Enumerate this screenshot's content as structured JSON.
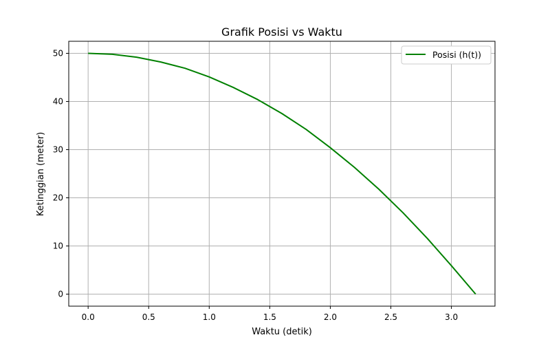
{
  "chart_data": {
    "type": "line",
    "title": "Grafik Posisi vs Waktu",
    "xlabel": "Waktu (detik)",
    "ylabel": "Ketinggian (meter)",
    "xlim": [
      -0.16,
      3.36
    ],
    "ylim": [
      -2.5,
      52.5
    ],
    "xticks": [
      0.0,
      0.5,
      1.0,
      1.5,
      2.0,
      2.5,
      3.0
    ],
    "xtick_labels": [
      "0.0",
      "0.5",
      "1.0",
      "1.5",
      "2.0",
      "2.5",
      "3.0"
    ],
    "yticks": [
      0,
      10,
      20,
      30,
      40,
      50
    ],
    "ytick_labels": [
      "0",
      "10",
      "20",
      "30",
      "40",
      "50"
    ],
    "grid": true,
    "legend_position": "top-right",
    "series": [
      {
        "name": "Posisi (h(t))",
        "color": "#008000",
        "x": [
          0.0,
          0.2,
          0.4,
          0.6,
          0.8,
          1.0,
          1.2,
          1.4,
          1.6,
          1.8,
          2.0,
          2.2,
          2.4,
          2.6,
          2.8,
          3.0,
          3.2
        ],
        "y": [
          50.0,
          49.8,
          49.2,
          48.2,
          46.9,
          45.1,
          42.9,
          40.4,
          37.5,
          34.2,
          30.4,
          26.3,
          21.8,
          16.9,
          11.6,
          5.9,
          0.0
        ]
      }
    ]
  }
}
